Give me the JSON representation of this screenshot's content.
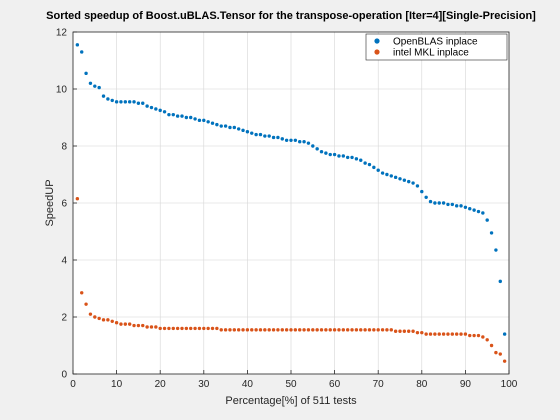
{
  "chart_data": {
    "type": "scatter",
    "title": "Sorted speedup of Boost.uBLAS.Tensor for the transpose-operation [Iter=4][Single-Precision]",
    "xlabel": "Percentage[%] of 511 tests",
    "ylabel": "SpeedUP",
    "xlim": [
      0,
      100
    ],
    "ylim": [
      0,
      12
    ],
    "xticks": [
      0,
      10,
      20,
      30,
      40,
      50,
      60,
      70,
      80,
      90,
      100
    ],
    "yticks": [
      0,
      2,
      4,
      6,
      8,
      10,
      12
    ],
    "grid": true,
    "legend_position": "top-right",
    "series": [
      {
        "name": "OpenBLAS inplace",
        "color": "#0072bd",
        "x": [
          1,
          2,
          3,
          4,
          5,
          6,
          7,
          8,
          9,
          10,
          11,
          12,
          13,
          14,
          15,
          16,
          17,
          18,
          19,
          20,
          21,
          22,
          23,
          24,
          25,
          26,
          27,
          28,
          29,
          30,
          31,
          32,
          33,
          34,
          35,
          36,
          37,
          38,
          39,
          40,
          41,
          42,
          43,
          44,
          45,
          46,
          47,
          48,
          49,
          50,
          51,
          52,
          53,
          54,
          55,
          56,
          57,
          58,
          59,
          60,
          61,
          62,
          63,
          64,
          65,
          66,
          67,
          68,
          69,
          70,
          71,
          72,
          73,
          74,
          75,
          76,
          77,
          78,
          79,
          80,
          81,
          82,
          83,
          84,
          85,
          86,
          87,
          88,
          89,
          90,
          91,
          92,
          93,
          94,
          95,
          96,
          97,
          98,
          99
        ],
        "y": [
          11.55,
          11.3,
          10.55,
          10.2,
          10.1,
          10.05,
          9.75,
          9.65,
          9.6,
          9.55,
          9.55,
          9.55,
          9.55,
          9.55,
          9.5,
          9.5,
          9.4,
          9.35,
          9.3,
          9.25,
          9.2,
          9.1,
          9.1,
          9.05,
          9.05,
          9.0,
          9.0,
          8.95,
          8.9,
          8.9,
          8.85,
          8.8,
          8.75,
          8.7,
          8.7,
          8.65,
          8.65,
          8.6,
          8.55,
          8.5,
          8.45,
          8.4,
          8.4,
          8.35,
          8.35,
          8.3,
          8.3,
          8.25,
          8.2,
          8.2,
          8.2,
          8.15,
          8.15,
          8.1,
          8.0,
          7.9,
          7.8,
          7.75,
          7.7,
          7.7,
          7.65,
          7.65,
          7.6,
          7.6,
          7.55,
          7.5,
          7.4,
          7.35,
          7.25,
          7.15,
          7.05,
          7.0,
          6.95,
          6.9,
          6.85,
          6.8,
          6.75,
          6.7,
          6.6,
          6.4,
          6.2,
          6.05,
          6.0,
          6.0,
          6.0,
          5.95,
          5.95,
          5.9,
          5.9,
          5.85,
          5.8,
          5.75,
          5.7,
          5.65,
          5.4,
          4.95,
          4.35,
          3.25,
          1.4
        ]
      },
      {
        "name": "intel MKL inplace",
        "color": "#d95319",
        "x": [
          1,
          2,
          3,
          4,
          5,
          6,
          7,
          8,
          9,
          10,
          11,
          12,
          13,
          14,
          15,
          16,
          17,
          18,
          19,
          20,
          21,
          22,
          23,
          24,
          25,
          26,
          27,
          28,
          29,
          30,
          31,
          32,
          33,
          34,
          35,
          36,
          37,
          38,
          39,
          40,
          41,
          42,
          43,
          44,
          45,
          46,
          47,
          48,
          49,
          50,
          51,
          52,
          53,
          54,
          55,
          56,
          57,
          58,
          59,
          60,
          61,
          62,
          63,
          64,
          65,
          66,
          67,
          68,
          69,
          70,
          71,
          72,
          73,
          74,
          75,
          76,
          77,
          78,
          79,
          80,
          81,
          82,
          83,
          84,
          85,
          86,
          87,
          88,
          89,
          90,
          91,
          92,
          93,
          94,
          95,
          96,
          97,
          98,
          99
        ],
        "y": [
          6.15,
          2.85,
          2.45,
          2.1,
          2.0,
          1.95,
          1.9,
          1.9,
          1.85,
          1.8,
          1.75,
          1.75,
          1.75,
          1.7,
          1.7,
          1.7,
          1.65,
          1.65,
          1.65,
          1.6,
          1.6,
          1.6,
          1.6,
          1.6,
          1.6,
          1.6,
          1.6,
          1.6,
          1.6,
          1.6,
          1.6,
          1.6,
          1.6,
          1.55,
          1.55,
          1.55,
          1.55,
          1.55,
          1.55,
          1.55,
          1.55,
          1.55,
          1.55,
          1.55,
          1.55,
          1.55,
          1.55,
          1.55,
          1.55,
          1.55,
          1.55,
          1.55,
          1.55,
          1.55,
          1.55,
          1.55,
          1.55,
          1.55,
          1.55,
          1.55,
          1.55,
          1.55,
          1.55,
          1.55,
          1.55,
          1.55,
          1.55,
          1.55,
          1.55,
          1.55,
          1.55,
          1.55,
          1.55,
          1.5,
          1.5,
          1.5,
          1.5,
          1.5,
          1.45,
          1.45,
          1.4,
          1.4,
          1.4,
          1.4,
          1.4,
          1.4,
          1.4,
          1.4,
          1.4,
          1.4,
          1.35,
          1.35,
          1.35,
          1.3,
          1.2,
          1.0,
          0.75,
          0.7,
          0.45
        ]
      }
    ]
  }
}
